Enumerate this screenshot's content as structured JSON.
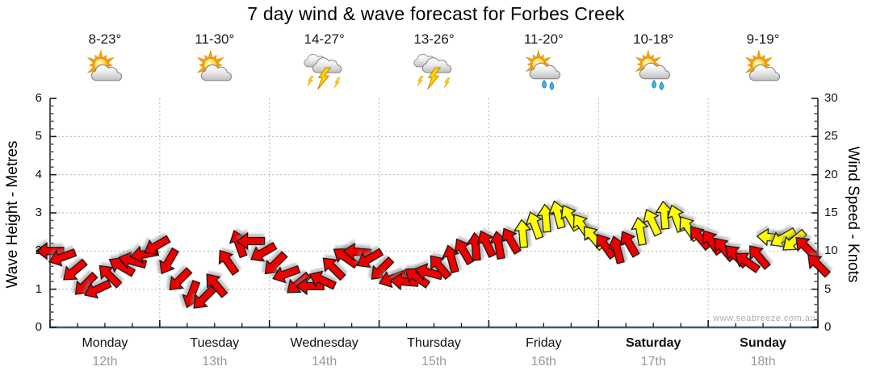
{
  "title": "7 day wind & wave forecast for Forbes Creek",
  "watermark": "www.seabreeze.com.au",
  "chart_data": {
    "type": "wind-arrow-timeseries",
    "title": "7 day wind & wave forecast for Forbes Creek",
    "left_axis": {
      "label": "Wave Height - Metres",
      "min": 0,
      "max": 6,
      "major_step": 1,
      "minor_step": 0.2
    },
    "right_axis": {
      "label": "Wind Speed - Knots",
      "min": 0,
      "max": 30,
      "major_step": 5,
      "minor_step": 1
    },
    "x_axis": {
      "days_shown": 7,
      "minor_ticks_per_day": 4,
      "grid": "dotted-at-day-boundaries"
    },
    "days": [
      {
        "name": "Monday",
        "date": "12th",
        "temp": "8-23°",
        "icon": "partly-cloudy-icon",
        "bold": false
      },
      {
        "name": "Tuesday",
        "date": "13th",
        "temp": "11-30°",
        "icon": "partly-cloudy-icon",
        "bold": false
      },
      {
        "name": "Wednesday",
        "date": "14th",
        "temp": "14-27°",
        "icon": "thunderstorm-icon",
        "bold": false
      },
      {
        "name": "Thursday",
        "date": "15th",
        "temp": "13-26°",
        "icon": "thunderstorm-icon",
        "bold": false
      },
      {
        "name": "Friday",
        "date": "16th",
        "temp": "11-20°",
        "icon": "sun-showers-icon",
        "bold": false
      },
      {
        "name": "Saturday",
        "date": "17th",
        "temp": "10-18°",
        "icon": "sun-showers-icon",
        "bold": true
      },
      {
        "name": "Sunday",
        "date": "18th",
        "temp": "9-19°",
        "icon": "partly-cloudy-icon",
        "bold": true
      }
    ],
    "colors": {
      "arrow_red": "#ee0000",
      "arrow_yellow": "#ffff00",
      "arrow_outline": "#111111",
      "grid": "#b5b5b5",
      "axis": "#1a1a1a",
      "baseline": "#35607f",
      "date_text": "#999999",
      "watermark": "#adadad"
    },
    "wind_arrows": {
      "units": "knots",
      "t_units": "days-from-monday-00h",
      "dir_units": "css-deg-0-points-right-cw",
      "points": [
        {
          "t": 0.0,
          "knots": 10.0,
          "dir": 180,
          "color": "red"
        },
        {
          "t": 0.11,
          "knots": 9.2,
          "dir": 160,
          "color": "red"
        },
        {
          "t": 0.22,
          "knots": 7.4,
          "dir": 140,
          "color": "red"
        },
        {
          "t": 0.32,
          "knots": 5.6,
          "dir": 135,
          "color": "red"
        },
        {
          "t": 0.43,
          "knots": 5.0,
          "dir": 155,
          "color": "red"
        },
        {
          "t": 0.54,
          "knots": 6.8,
          "dir": 225,
          "color": "red"
        },
        {
          "t": 0.65,
          "knots": 8.0,
          "dir": 210,
          "color": "red"
        },
        {
          "t": 0.75,
          "knots": 8.7,
          "dir": 195,
          "color": "red"
        },
        {
          "t": 0.86,
          "knots": 9.6,
          "dir": 170,
          "color": "red"
        },
        {
          "t": 0.97,
          "knots": 10.7,
          "dir": 150,
          "color": "red"
        },
        {
          "t": 1.08,
          "knots": 8.6,
          "dir": 120,
          "color": "red"
        },
        {
          "t": 1.18,
          "knots": 6.2,
          "dir": 135,
          "color": "red"
        },
        {
          "t": 1.29,
          "knots": 4.3,
          "dir": 110,
          "color": "red"
        },
        {
          "t": 1.4,
          "knots": 3.8,
          "dir": 135,
          "color": "red"
        },
        {
          "t": 1.51,
          "knots": 5.6,
          "dir": 230,
          "color": "red"
        },
        {
          "t": 1.62,
          "knots": 8.6,
          "dir": 235,
          "color": "red"
        },
        {
          "t": 1.72,
          "knots": 11.0,
          "dir": 250,
          "color": "red"
        },
        {
          "t": 1.83,
          "knots": 11.3,
          "dir": 180,
          "color": "red"
        },
        {
          "t": 1.94,
          "knots": 9.8,
          "dir": 150,
          "color": "red"
        },
        {
          "t": 2.05,
          "knots": 8.3,
          "dir": 135,
          "color": "red"
        },
        {
          "t": 2.15,
          "knots": 7.0,
          "dir": 160,
          "color": "red"
        },
        {
          "t": 2.26,
          "knots": 5.7,
          "dir": 140,
          "color": "red"
        },
        {
          "t": 2.37,
          "knots": 5.4,
          "dir": 180,
          "color": "red"
        },
        {
          "t": 2.48,
          "knots": 6.2,
          "dir": 205,
          "color": "red"
        },
        {
          "t": 2.58,
          "knots": 7.8,
          "dir": 225,
          "color": "red"
        },
        {
          "t": 2.69,
          "knots": 9.2,
          "dir": 215,
          "color": "red"
        },
        {
          "t": 2.8,
          "knots": 9.9,
          "dir": 185,
          "color": "red"
        },
        {
          "t": 2.91,
          "knots": 9.0,
          "dir": 150,
          "color": "red"
        },
        {
          "t": 3.02,
          "knots": 7.6,
          "dir": 135,
          "color": "red"
        },
        {
          "t": 3.12,
          "knots": 6.4,
          "dir": 160,
          "color": "red"
        },
        {
          "t": 3.23,
          "knots": 6.0,
          "dir": 185,
          "color": "red"
        },
        {
          "t": 3.34,
          "knots": 6.6,
          "dir": 215,
          "color": "red"
        },
        {
          "t": 3.45,
          "knots": 7.2,
          "dir": 195,
          "color": "red"
        },
        {
          "t": 3.55,
          "knots": 8.0,
          "dir": 230,
          "color": "red"
        },
        {
          "t": 3.66,
          "knots": 9.0,
          "dir": 255,
          "color": "red"
        },
        {
          "t": 3.77,
          "knots": 10.0,
          "dir": 240,
          "color": "red"
        },
        {
          "t": 3.88,
          "knots": 10.6,
          "dir": 265,
          "color": "red"
        },
        {
          "t": 3.98,
          "knots": 11.0,
          "dir": 245,
          "color": "red"
        },
        {
          "t": 4.09,
          "knots": 10.8,
          "dir": 260,
          "color": "red"
        },
        {
          "t": 4.2,
          "knots": 11.4,
          "dir": 240,
          "color": "red"
        },
        {
          "t": 4.31,
          "knots": 12.3,
          "dir": 265,
          "color": "yellow"
        },
        {
          "t": 4.42,
          "knots": 13.4,
          "dir": 250,
          "color": "yellow"
        },
        {
          "t": 4.52,
          "knots": 14.3,
          "dir": 265,
          "color": "yellow"
        },
        {
          "t": 4.63,
          "knots": 14.8,
          "dir": 255,
          "color": "yellow"
        },
        {
          "t": 4.74,
          "knots": 14.4,
          "dir": 240,
          "color": "yellow"
        },
        {
          "t": 4.85,
          "knots": 13.3,
          "dir": 235,
          "color": "yellow"
        },
        {
          "t": 4.95,
          "knots": 11.8,
          "dir": 230,
          "color": "yellow"
        },
        {
          "t": 5.06,
          "knots": 10.7,
          "dir": 235,
          "color": "red"
        },
        {
          "t": 5.17,
          "knots": 10.2,
          "dir": 255,
          "color": "red"
        },
        {
          "t": 5.28,
          "knots": 11.0,
          "dir": 240,
          "color": "red"
        },
        {
          "t": 5.38,
          "knots": 12.6,
          "dir": 260,
          "color": "yellow"
        },
        {
          "t": 5.49,
          "knots": 13.8,
          "dir": 245,
          "color": "yellow"
        },
        {
          "t": 5.6,
          "knots": 14.7,
          "dir": 265,
          "color": "yellow"
        },
        {
          "t": 5.71,
          "knots": 14.3,
          "dir": 250,
          "color": "yellow"
        },
        {
          "t": 5.82,
          "knots": 13.0,
          "dir": 235,
          "color": "yellow"
        },
        {
          "t": 5.92,
          "knots": 11.8,
          "dir": 230,
          "color": "red"
        },
        {
          "t": 6.03,
          "knots": 11.2,
          "dir": 235,
          "color": "red"
        },
        {
          "t": 6.14,
          "knots": 10.3,
          "dir": 230,
          "color": "red"
        },
        {
          "t": 6.25,
          "knots": 9.4,
          "dir": 225,
          "color": "red"
        },
        {
          "t": 6.35,
          "knots": 8.6,
          "dir": 215,
          "color": "red"
        },
        {
          "t": 6.46,
          "knots": 9.3,
          "dir": 230,
          "color": "red"
        },
        {
          "t": 6.57,
          "knots": 11.8,
          "dir": 185,
          "color": "yellow"
        },
        {
          "t": 6.68,
          "knots": 11.7,
          "dir": 150,
          "color": "yellow"
        },
        {
          "t": 6.78,
          "knots": 11.3,
          "dir": 140,
          "color": "yellow"
        },
        {
          "t": 6.89,
          "knots": 10.5,
          "dir": 225,
          "color": "red"
        },
        {
          "t": 7.0,
          "knots": 8.2,
          "dir": 225,
          "color": "red"
        }
      ]
    }
  }
}
